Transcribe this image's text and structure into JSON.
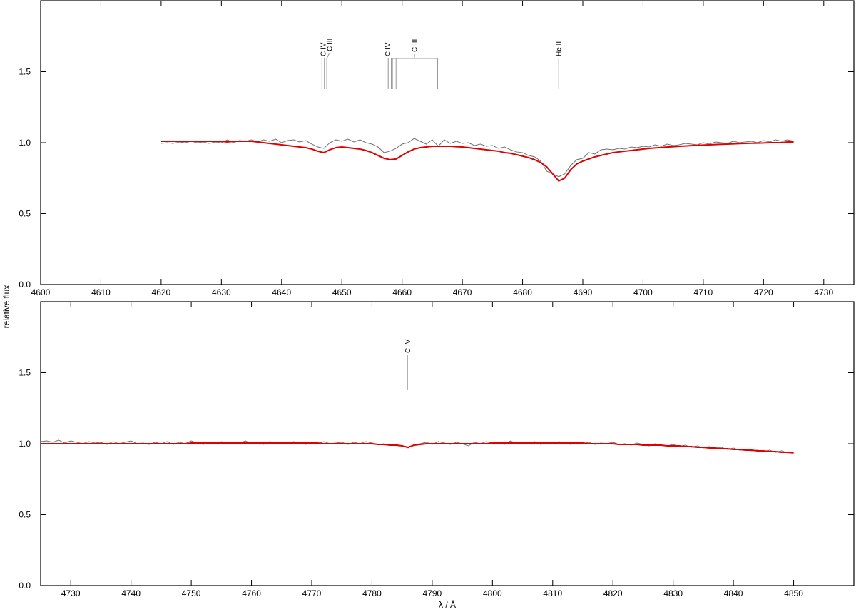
{
  "chart_data": [
    {
      "type": "line",
      "ylabel": "relative flux",
      "xlim": [
        4600,
        4735
      ],
      "ylim": [
        0,
        2
      ],
      "xticks": [
        4600,
        4610,
        4620,
        4630,
        4640,
        4650,
        4660,
        4670,
        4680,
        4690,
        4700,
        4710,
        4720,
        4730
      ],
      "yticks": [
        {
          "value": 0,
          "label": "0.0"
        },
        {
          "value": 0.5,
          "label": "0.5"
        },
        {
          "value": 1,
          "label": "1.0"
        },
        {
          "value": 1.5,
          "label": "1.5"
        }
      ],
      "x": [
        4620,
        4621,
        4622,
        4623,
        4624,
        4625,
        4626,
        4627,
        4628,
        4629,
        4630,
        4631,
        4632,
        4633,
        4634,
        4635,
        4636,
        4637,
        4638,
        4639,
        4640,
        4641,
        4642,
        4643,
        4644,
        4645,
        4646,
        4647,
        4648,
        4649,
        4650,
        4651,
        4652,
        4653,
        4654,
        4655,
        4656,
        4657,
        4658,
        4659,
        4660,
        4661,
        4662,
        4663,
        4664,
        4665,
        4666,
        4667,
        4668,
        4669,
        4670,
        4671,
        4672,
        4673,
        4674,
        4675,
        4676,
        4677,
        4678,
        4679,
        4680,
        4681,
        4682,
        4683,
        4684,
        4685,
        4686,
        4687,
        4688,
        4689,
        4690,
        4691,
        4692,
        4693,
        4694,
        4695,
        4696,
        4697,
        4698,
        4699,
        4700,
        4701,
        4702,
        4703,
        4704,
        4705,
        4706,
        4707,
        4708,
        4709,
        4710,
        4711,
        4712,
        4713,
        4714,
        4715,
        4716,
        4717,
        4718,
        4719,
        4720,
        4721,
        4722,
        4723,
        4724,
        4725
      ],
      "series": [
        {
          "color": "#707070",
          "values": [
            0.995,
            1.0,
            0.995,
            1.005,
            1.0,
            1.01,
            1.0,
            1.005,
            0.995,
            1.005,
            1.0,
            1.02,
            1.0,
            1.015,
            1.01,
            1.02,
            1.005,
            1.02,
            1.01,
            1.025,
            1.0,
            1.015,
            1.02,
            1.005,
            1.015,
            0.99,
            0.97,
            0.96,
            1.0,
            1.02,
            1.01,
            1.025,
            1.005,
            1.02,
            1.0,
            0.99,
            0.97,
            0.93,
            0.94,
            0.96,
            0.99,
            1.0,
            1.03,
            1.01,
            0.99,
            1.02,
            0.975,
            1.02,
            0.995,
            1.01,
            0.995,
            1.0,
            0.98,
            0.99,
            0.975,
            0.98,
            0.96,
            0.97,
            0.95,
            0.935,
            0.93,
            0.91,
            0.9,
            0.87,
            0.8,
            0.78,
            0.76,
            0.78,
            0.84,
            0.88,
            0.89,
            0.93,
            0.92,
            0.95,
            0.955,
            0.95,
            0.96,
            0.955,
            0.97,
            0.965,
            0.975,
            0.97,
            0.985,
            0.975,
            0.99,
            0.98,
            0.985,
            0.995,
            0.99,
            0.985,
            1.0,
            0.99,
            1.005,
            1.0,
            0.995,
            1.01,
            1.0,
            1.005,
            1.01,
            1.0,
            1.015,
            1.005,
            1.02,
            1.01,
            1.02,
            1.01
          ]
        },
        {
          "color": "#e00000",
          "values": [
            1.01,
            1.01,
            1.01,
            1.01,
            1.01,
            1.01,
            1.01,
            1.01,
            1.01,
            1.01,
            1.01,
            1.005,
            1.01,
            1.01,
            1.01,
            1.01,
            1.005,
            1.0,
            0.995,
            0.99,
            0.985,
            0.98,
            0.975,
            0.97,
            0.965,
            0.955,
            0.94,
            0.93,
            0.95,
            0.965,
            0.97,
            0.965,
            0.96,
            0.955,
            0.945,
            0.93,
            0.91,
            0.89,
            0.88,
            0.885,
            0.91,
            0.935,
            0.955,
            0.965,
            0.97,
            0.975,
            0.975,
            0.975,
            0.975,
            0.972,
            0.97,
            0.965,
            0.96,
            0.955,
            0.95,
            0.945,
            0.94,
            0.93,
            0.925,
            0.915,
            0.905,
            0.895,
            0.88,
            0.86,
            0.83,
            0.78,
            0.73,
            0.75,
            0.81,
            0.85,
            0.87,
            0.885,
            0.9,
            0.91,
            0.92,
            0.93,
            0.935,
            0.94,
            0.945,
            0.95,
            0.955,
            0.96,
            0.963,
            0.966,
            0.969,
            0.972,
            0.975,
            0.977,
            0.979,
            0.981,
            0.983,
            0.985,
            0.987,
            0.989,
            0.99,
            0.992,
            0.994,
            0.995,
            0.996,
            0.997,
            0.998,
            1.0,
            1.0,
            1.0,
            1.005,
            1.005
          ]
        }
      ],
      "line_ids": [
        {
          "label": "C IV",
          "wavelengths": [
            4646.7,
            4647.1
          ]
        },
        {
          "label": "C III",
          "wavelengths": [
            4647.5
          ]
        },
        {
          "label": "C IV",
          "wavelengths": [
            4657.5,
            4657.7
          ]
        },
        {
          "label": "C III",
          "wavelengths": [
            4658.2,
            4658.4,
            4659.0,
            4665.9
          ]
        },
        {
          "label": "He II",
          "wavelengths": [
            4686.0
          ]
        }
      ]
    },
    {
      "type": "line",
      "xlabel": "λ / Å",
      "xlim": [
        4725,
        4860
      ],
      "ylim": [
        0,
        2
      ],
      "xticks": [
        4730,
        4740,
        4750,
        4760,
        4770,
        4780,
        4790,
        4800,
        4810,
        4820,
        4830,
        4840,
        4850
      ],
      "yticks": [
        {
          "value": 0,
          "label": "0.0"
        },
        {
          "value": 0.5,
          "label": "0.5"
        },
        {
          "value": 1,
          "label": "1.0"
        },
        {
          "value": 1.5,
          "label": "1.5"
        }
      ],
      "x": [
        4725,
        4726,
        4727,
        4728,
        4729,
        4730,
        4731,
        4732,
        4733,
        4734,
        4735,
        4736,
        4737,
        4738,
        4739,
        4740,
        4741,
        4742,
        4743,
        4744,
        4745,
        4746,
        4747,
        4748,
        4749,
        4750,
        4751,
        4752,
        4753,
        4754,
        4755,
        4756,
        4757,
        4758,
        4759,
        4760,
        4761,
        4762,
        4763,
        4764,
        4765,
        4766,
        4767,
        4768,
        4769,
        4770,
        4771,
        4772,
        4773,
        4774,
        4775,
        4776,
        4777,
        4778,
        4779,
        4780,
        4781,
        4782,
        4783,
        4784,
        4785,
        4786,
        4787,
        4788,
        4789,
        4790,
        4791,
        4792,
        4793,
        4794,
        4795,
        4796,
        4797,
        4798,
        4799,
        4800,
        4801,
        4802,
        4803,
        4804,
        4805,
        4806,
        4807,
        4808,
        4809,
        4810,
        4811,
        4812,
        4813,
        4814,
        4815,
        4816,
        4817,
        4818,
        4819,
        4820,
        4821,
        4822,
        4823,
        4824,
        4825,
        4826,
        4827,
        4828,
        4829,
        4830,
        4831,
        4832,
        4833,
        4834,
        4835,
        4836,
        4837,
        4838,
        4839,
        4840,
        4841,
        4842,
        4843,
        4844,
        4845,
        4846,
        4847,
        4848,
        4849,
        4850
      ],
      "series": [
        {
          "color": "#707070",
          "values": [
            1.015,
            1.02,
            1.01,
            1.025,
            1.005,
            1.02,
            1.01,
            1.0,
            1.015,
            1.005,
            1.01,
            0.995,
            1.015,
            1.0,
            1.01,
            1.02,
            1.0,
            1.005,
            0.995,
            1.01,
            1.0,
            1.015,
            0.995,
            1.01,
            1.0,
            1.02,
            1.005,
            0.995,
            1.01,
            1.0,
            1.015,
            1.0,
            1.01,
            1.005,
            1.02,
            1.0,
            1.01,
            0.995,
            1.015,
            1.005,
            1.01,
            1.0,
            1.015,
            1.005,
            0.995,
            1.01,
            1.0,
            1.015,
            1.0,
            1.005,
            1.01,
            0.995,
            1.01,
            1.0,
            1.015,
            1.005,
            0.995,
            1.0,
            0.99,
            0.995,
            0.985,
            0.97,
            0.995,
            1.0,
            1.01,
            0.995,
            1.015,
            1.005,
            0.995,
            1.01,
            1.0,
            0.985,
            1.01,
            1.0,
            1.015,
            1.005,
            1.01,
            0.995,
            1.02,
            1.0,
            1.01,
            1.005,
            1.015,
            0.995,
            1.01,
            1.0,
            1.015,
            1.005,
            0.995,
            1.01,
            1.0,
            1.01,
            0.995,
            1.005,
            1.0,
            1.01,
            0.995,
            1.0,
            0.99,
            1.005,
            0.995,
            0.985,
            1.0,
            0.99,
            0.985,
            0.995,
            0.98,
            0.99,
            0.975,
            0.985,
            0.97,
            0.98,
            0.965,
            0.975,
            0.96,
            0.97,
            0.955,
            0.96,
            0.95,
            0.955,
            0.945,
            0.955,
            0.94,
            0.95,
            0.935,
            0.94
          ]
        },
        {
          "color": "#e00000",
          "values": [
            1.0,
            1.0,
            1.0,
            1.0,
            1.0,
            1.0,
            1.0,
            1.0,
            1.0,
            1.0,
            1.0,
            1.0,
            1.0,
            1.0,
            1.0,
            1.0,
            1.0,
            1.0,
            1.0,
            1.0,
            1.0,
            1.0,
            1.0,
            1.0,
            1.0,
            1.005,
            1.005,
            1.005,
            1.005,
            1.005,
            1.005,
            1.005,
            1.005,
            1.005,
            1.005,
            1.005,
            1.005,
            1.005,
            1.005,
            1.005,
            1.005,
            1.005,
            1.005,
            1.005,
            1.005,
            1.005,
            1.005,
            1.0,
            1.0,
            1.0,
            1.0,
            1.0,
            1.0,
            1.0,
            1.0,
            1.0,
            0.995,
            0.995,
            0.99,
            0.99,
            0.985,
            0.975,
            0.99,
            0.995,
            1.0,
            1.0,
            1.0,
            1.0,
            1.0,
            1.0,
            1.0,
            1.0,
            1.0,
            1.0,
            1.0,
            1.005,
            1.005,
            1.005,
            1.005,
            1.005,
            1.005,
            1.005,
            1.005,
            1.005,
            1.005,
            1.005,
            1.005,
            1.005,
            1.005,
            1.005,
            1.005,
            1.0,
            1.0,
            1.0,
            1.0,
            1.0,
            0.995,
            0.995,
            0.995,
            0.995,
            0.99,
            0.99,
            0.99,
            0.99,
            0.985,
            0.985,
            0.985,
            0.98,
            0.98,
            0.975,
            0.975,
            0.97,
            0.97,
            0.965,
            0.965,
            0.96,
            0.96,
            0.955,
            0.955,
            0.95,
            0.95,
            0.945,
            0.945,
            0.94,
            0.94,
            0.935
          ]
        }
      ],
      "line_ids": [
        {
          "label": "C IV",
          "wavelengths": [
            4785.9
          ]
        }
      ]
    }
  ]
}
